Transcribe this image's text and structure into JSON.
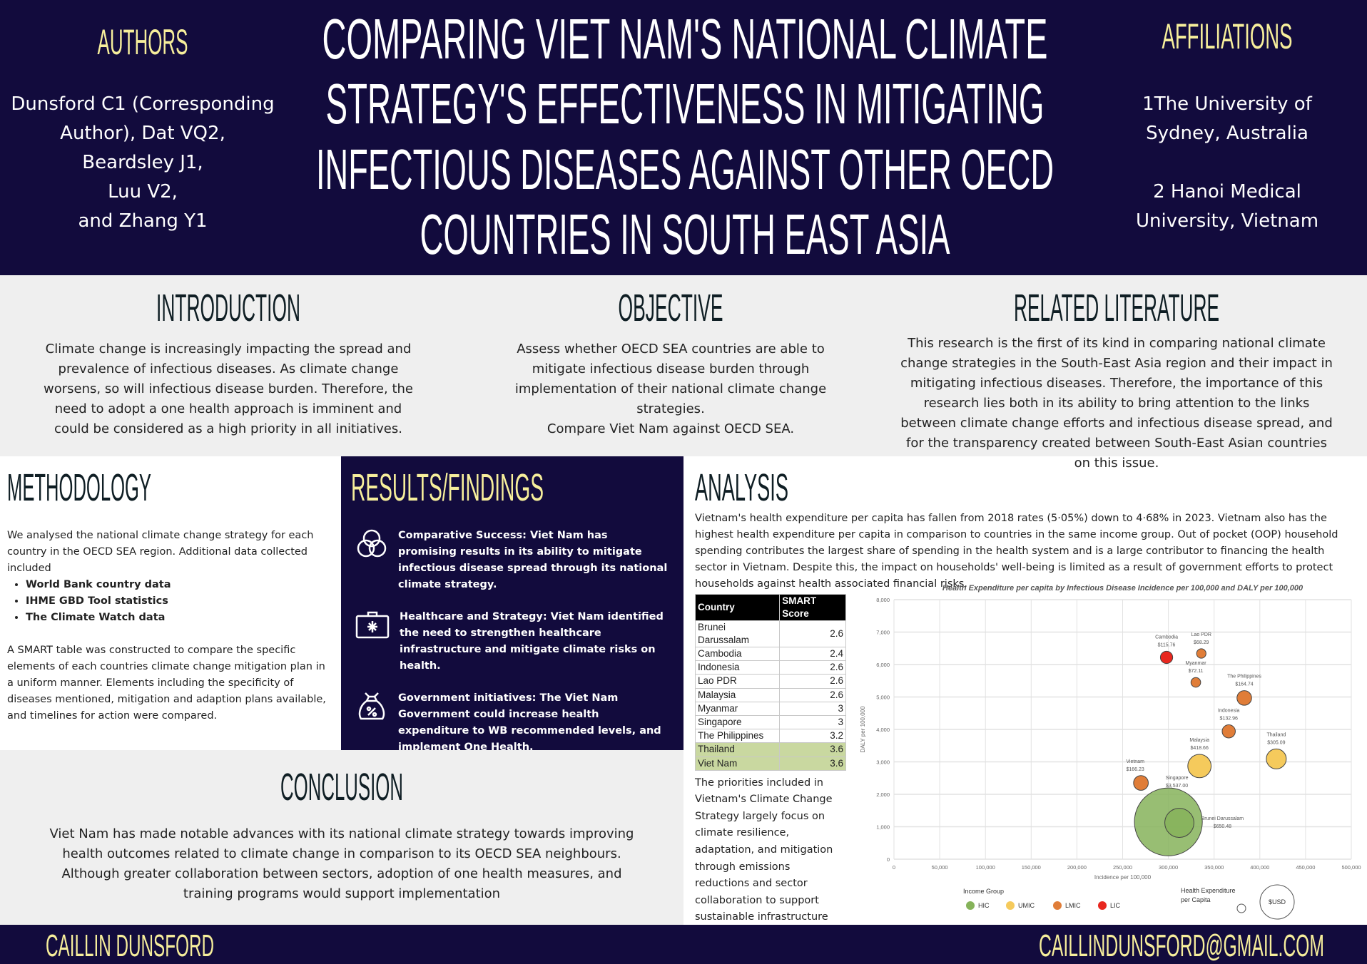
{
  "header": {
    "authors_title": "AUTHORS",
    "authors": [
      "Dunsford C1 (Corresponding",
      "Author), Dat VQ2,",
      "Beardsley J1,",
      "Luu V2,",
      "and Zhang Y1"
    ],
    "title_lines": [
      "COMPARING VIET NAM'S NATIONAL CLIMATE",
      "STRATEGY'S EFFECTIVENESS IN MITIGATING",
      "INFECTIOUS DISEASES AGAINST OTHER OECD",
      "COUNTRIES IN SOUTH EAST ASIA"
    ],
    "affiliations_title": "AFFILIATIONS",
    "affiliations": [
      "1The University of",
      "Sydney, Australia",
      "",
      "2 Hanoi Medical",
      "University, Vietnam"
    ]
  },
  "introduction": {
    "title": "INTRODUCTION",
    "text": "Climate change is increasingly impacting the spread and prevalence of infectious diseases. As climate change worsens, so will infectious disease burden. Therefore, the need to adopt a one health approach is imminent and could be considered as a high priority in all initiatives."
  },
  "objective": {
    "title": "OBJECTIVE",
    "text": "Assess whether OECD SEA countries are able to mitigate infectious disease burden through implementation of their national climate change strategies.",
    "text2": "Compare Viet Nam against OECD SEA."
  },
  "literature": {
    "title": "RELATED LITERATURE",
    "text": "This research is the first of its kind in comparing national climate change strategies in the South-East Asia region and their impact in mitigating infectious diseases. Therefore, the importance of this research lies both in its ability to bring attention to the links between climate change efforts and infectious disease spread, and for the transparency created between South-East Asian countries on this issue."
  },
  "methodology": {
    "title": "METHODOLOGY",
    "text1": "We analysed the national climate change strategy for each country in the OECD SEA region. Additional data collected included",
    "items": [
      "World Bank country data",
      "IHME GBD Tool statistics",
      "The Climate Watch data"
    ],
    "text2": "A SMART table was constructed to compare the specific elements of each countries climate change mitigation plan in a uniform manner. Elements including the specificity of diseases mentioned, mitigation and adaption plans available, and timelines for action were compared."
  },
  "results": {
    "title": "RESULTS/FINDINGS",
    "items": [
      {
        "icon": "venn-circles-icon",
        "text": "Comparative Success: Viet Nam has promising results in its ability to mitigate infectious disease spread through its national climate strategy."
      },
      {
        "icon": "medical-kit-icon",
        "text": "Healthcare and Strategy: Viet Nam identified the need to strengthen healthcare infrastructure and mitigate climate risks on health."
      },
      {
        "icon": "money-bag-percent-icon",
        "text": "Government initiatives: The Viet Nam Government could increase health expenditure to WB recommended levels, and implement One Health."
      }
    ]
  },
  "conclusion": {
    "title": "CONCLUSION",
    "text": "Viet Nam has made notable advances with its national climate strategy towards improving health outcomes related to climate change in comparison to its OECD SEA neighbours. Although greater collaboration between sectors, adoption of one health measures, and training programs would support implementation"
  },
  "analysis": {
    "title": "ANALYSIS",
    "text": "Vietnam's health expenditure per capita has fallen from 2018 rates (5·05%) down to 4·68% in 2023. Vietnam also has the highest health expenditure per capita in comparison to countries in the same income group. Out of pocket (OOP) household spending contributes the largest share of spending in the health system and is a large contributor to financing the health sector in Vietnam. Despite this, the impact on households' well-being is limited as a result of government efforts to protect households against health associated financial risks.",
    "priorities": "The priorities included in Vietnam's Climate Change Strategy largely focus on climate resilience, adaptation, and mitigation through emissions reductions and sector collaboration to support sustainable infrastructure and increase climate financial opportunities.",
    "table": {
      "headers": [
        "Country",
        "SMART Score"
      ],
      "rows": [
        {
          "country": "Brunei Darussalam",
          "score": "2.6"
        },
        {
          "country": "Cambodia",
          "score": "2.4"
        },
        {
          "country": "Indonesia",
          "score": "2.6"
        },
        {
          "country": "Lao PDR",
          "score": "2.6"
        },
        {
          "country": "Malaysia",
          "score": "2.6"
        },
        {
          "country": "Myanmar",
          "score": "3"
        },
        {
          "country": "Singapore",
          "score": "3"
        },
        {
          "country": "The Philippines",
          "score": "3.2"
        },
        {
          "country": "Thailand",
          "score": "3.6",
          "highlight": true
        },
        {
          "country": "Viet Nam",
          "score": "3.6",
          "highlight": true
        }
      ]
    }
  },
  "chart_data": {
    "type": "scatter",
    "subtype": "bubble",
    "title": "Health Expenditure per capita by Infectious Disease Incidence per 100,000 and DALY per 100,000",
    "xlabel": "Incidence per 100,000",
    "ylabel": "DALY per 100,000",
    "xlim": [
      0,
      500000
    ],
    "ylim": [
      0,
      8000
    ],
    "xticks": [
      "0",
      "50,000",
      "100,000",
      "150,000",
      "200,000",
      "250,000",
      "300,000",
      "350,000",
      "400,000",
      "450,000",
      "500,000"
    ],
    "yticks": [
      "0",
      "1,000",
      "2,000",
      "3,000",
      "4,000",
      "5,000",
      "6,000",
      "7,000",
      "8,000"
    ],
    "grid": true,
    "points": [
      {
        "name": "Singapore",
        "label": "$3,537.00",
        "x": 300000,
        "y": 1150,
        "size": 3537.0,
        "group": "HIC"
      },
      {
        "name": "Brunei Darussalam",
        "label": "$650.48",
        "x": 312000,
        "y": 1120,
        "size": 650.48,
        "group": "HIC"
      },
      {
        "name": "Cambodia",
        "label": "$115.76",
        "x": 298000,
        "y": 6220,
        "size": 115.76,
        "group": "LIC"
      },
      {
        "name": "Lao PDR",
        "label": "$68.29",
        "x": 336000,
        "y": 6340,
        "size": 68.29,
        "group": "LMIC"
      },
      {
        "name": "Myanmar",
        "label": "$72.11",
        "x": 330000,
        "y": 5450,
        "size": 72.11,
        "group": "LMIC"
      },
      {
        "name": "The Philippines",
        "label": "$164.74",
        "x": 383000,
        "y": 4970,
        "size": 164.74,
        "group": "LMIC"
      },
      {
        "name": "Indonesia",
        "label": "$132.96",
        "x": 366000,
        "y": 3940,
        "size": 132.96,
        "group": "LMIC"
      },
      {
        "name": "Thailand",
        "label": "$305.09",
        "x": 418000,
        "y": 3090,
        "size": 305.09,
        "group": "UMIC"
      },
      {
        "name": "Malaysia",
        "label": "$418.66",
        "x": 334000,
        "y": 2870,
        "size": 418.66,
        "group": "UMIC"
      },
      {
        "name": "Vietnam",
        "label": "$166.23",
        "x": 270000,
        "y": 2350,
        "size": 166.23,
        "group": "LMIC"
      }
    ],
    "legend": {
      "title": "Income Group",
      "entries": [
        {
          "name": "HIC",
          "color": "#86b35a"
        },
        {
          "name": "UMIC",
          "color": "#f5ca5c"
        },
        {
          "name": "LMIC",
          "color": "#e07d38"
        },
        {
          "name": "LIC",
          "color": "#e8271f"
        }
      ],
      "size_title_1": "Health Expenditure",
      "size_title_2": "per Capita",
      "size_unit": "$USD",
      "placement": "bottom"
    }
  },
  "footer": {
    "name": "CAILLIN DUNSFORD",
    "email": "CAILLINDUNSFORD@GMAIL.COM"
  }
}
